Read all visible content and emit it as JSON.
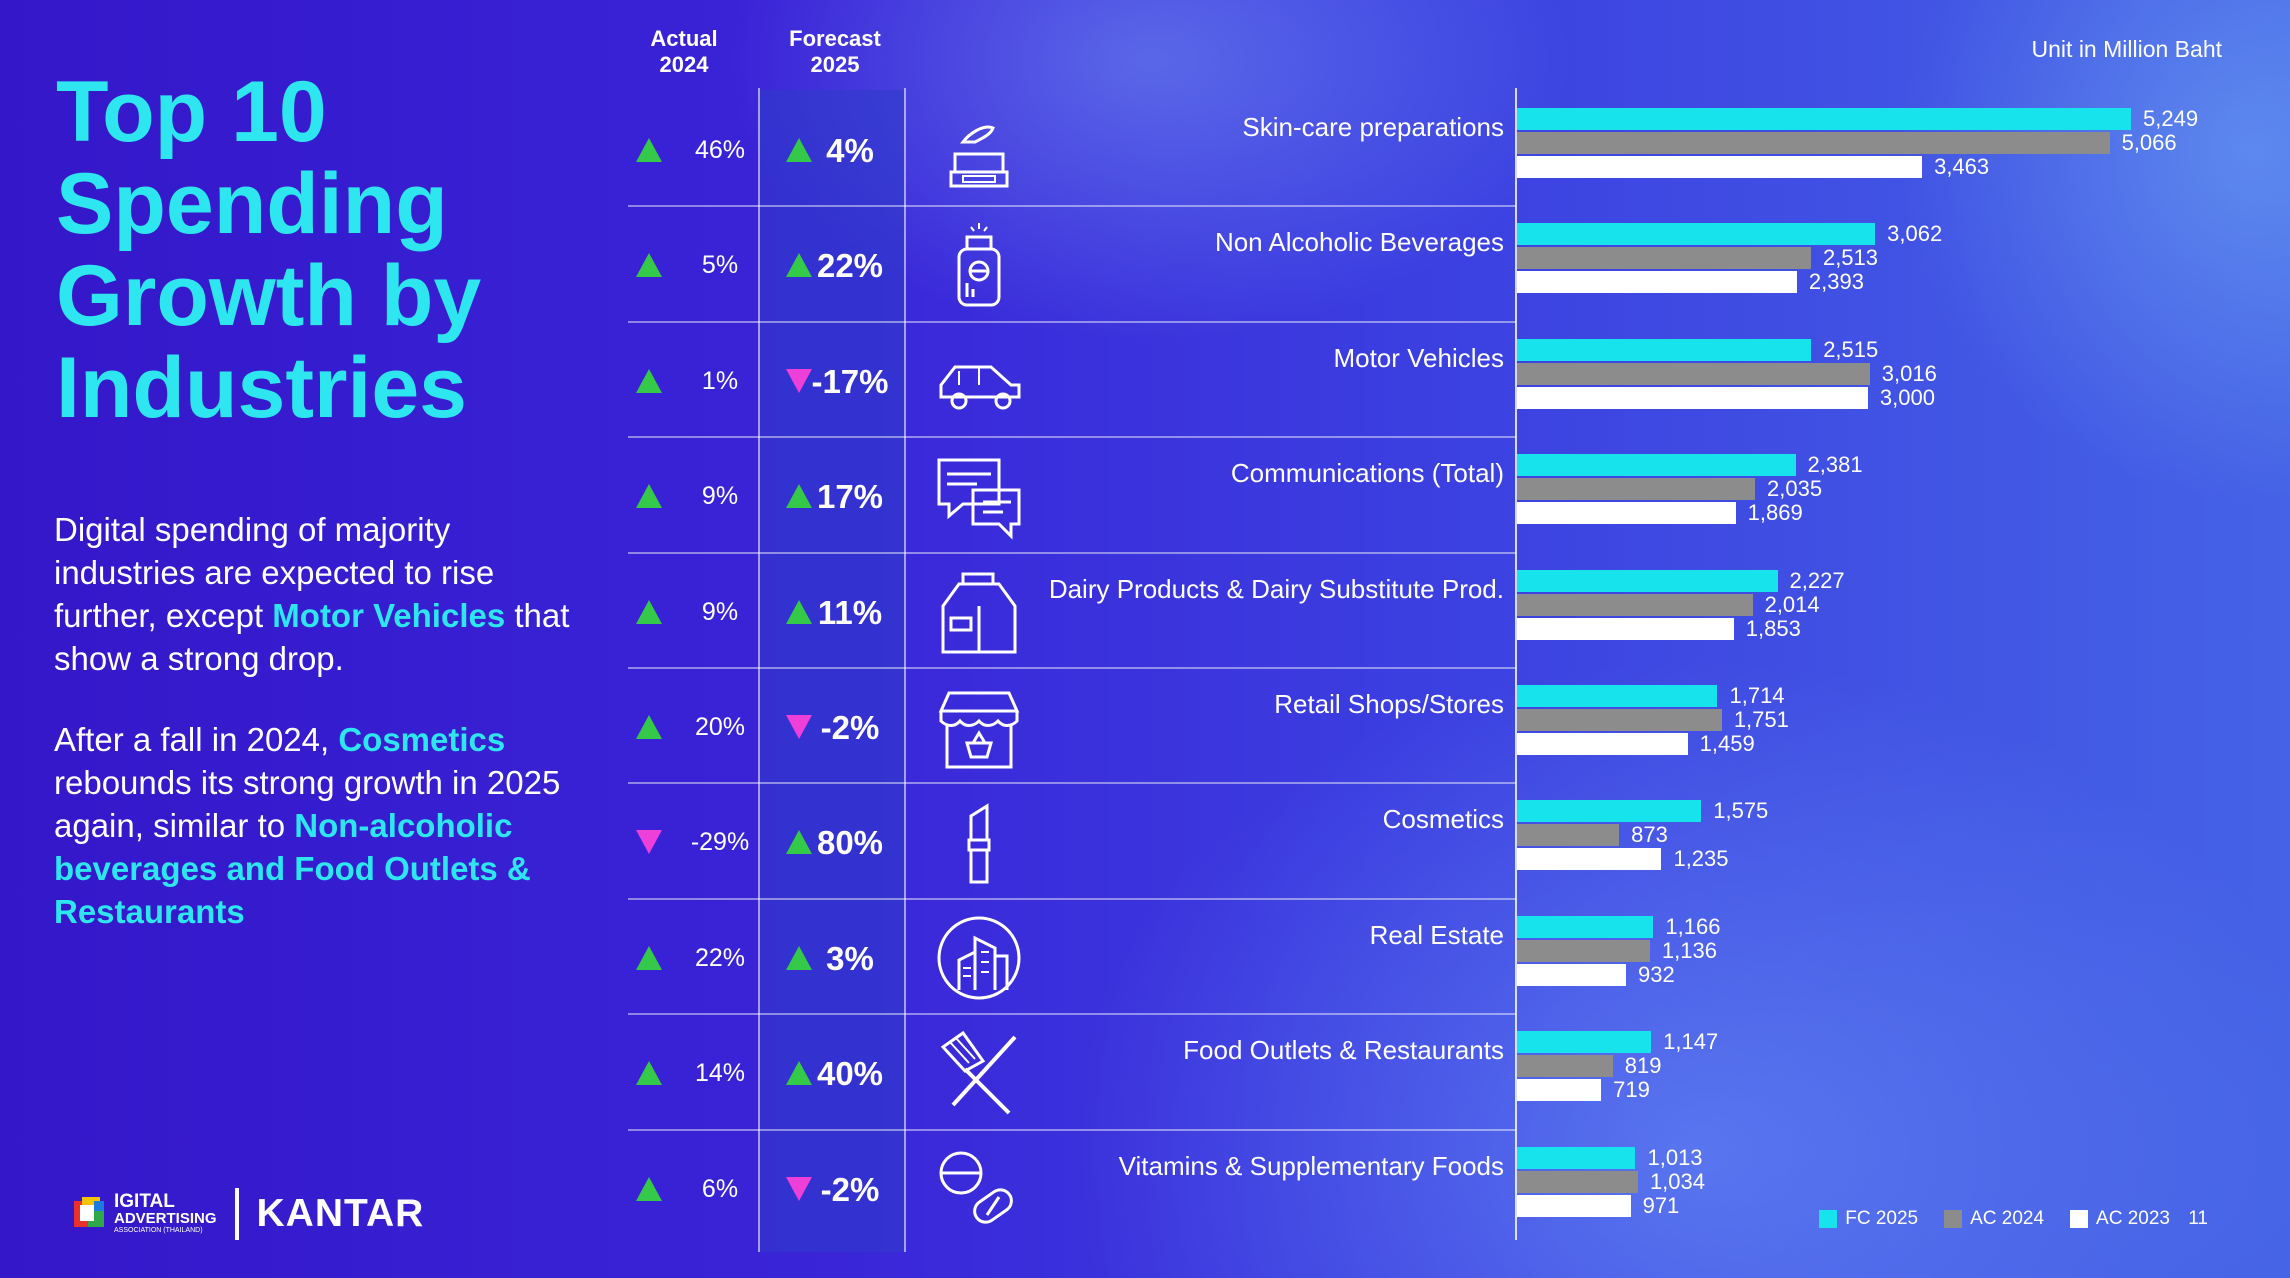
{
  "title": "Top 10 Spending Growth by Industries",
  "paragraph1": {
    "text_before": "Digital spending of majority industries are expected to rise further, except",
    "highlight": "Motor Vehicles",
    "text_after": "that show a strong drop."
  },
  "paragraph2": {
    "text_before": "After a fall in 2024,",
    "highlight1": "Cosmetics",
    "text_middle": "rebounds its strong growth in 2025 again, similar to",
    "highlight2": "Non-alcoholic beverages and Food Outlets & Restaurants"
  },
  "logos": {
    "digital_advertising": "IGITAL",
    "digital_advertising_line2": "ADVERTISING",
    "digital_advertising_sub": "ASSOCIATION (THAILAND)",
    "kantar": "KANTAR"
  },
  "columns": {
    "actual": "Actual 2024",
    "forecast": "Forecast 2025"
  },
  "unit": "Unit in Million Baht",
  "page_number": "11",
  "colors": {
    "fc2025": "#16e3ec",
    "ac2024": "#8c8c8c",
    "ac2023": "#ffffff",
    "up": "#35c94a",
    "down": "#ee3fd9",
    "highlight_text": "#2ee6f0"
  },
  "chart_data": {
    "type": "bar",
    "orientation": "horizontal",
    "categories": [
      "Skin-care preparations",
      "Non Alcoholic Beverages",
      "Motor Vehicles",
      "Communications (Total)",
      "Dairy Products & Dairy Substitute Prod.",
      "Retail Shops/Stores",
      "Cosmetics",
      "Real Estate",
      "Food Outlets & Restaurants",
      "Vitamins & Supplementary Foods"
    ],
    "icons": [
      "cream-jar-icon",
      "bottle-icon",
      "car-icon",
      "chat-bubbles-icon",
      "milk-carton-icon",
      "storefront-icon",
      "lipstick-icon",
      "buildings-icon",
      "utensils-icon",
      "pills-icon"
    ],
    "actual_2024_growth": [
      "46%",
      "5%",
      "1%",
      "9%",
      "9%",
      "20%",
      "-29%",
      "22%",
      "14%",
      "6%"
    ],
    "actual_2024_direction": [
      "up",
      "up",
      "up",
      "up",
      "up",
      "up",
      "down",
      "up",
      "up",
      "up"
    ],
    "forecast_2025_growth": [
      "4%",
      "22%",
      "-17%",
      "17%",
      "11%",
      "-2%",
      "80%",
      "3%",
      "40%",
      "-2%"
    ],
    "forecast_2025_direction": [
      "up",
      "up",
      "down",
      "up",
      "up",
      "down",
      "up",
      "up",
      "up",
      "down"
    ],
    "series": [
      {
        "name": "FC 2025",
        "values": [
          5249,
          3062,
          2515,
          2381,
          2227,
          1714,
          1575,
          1166,
          1147,
          1013
        ]
      },
      {
        "name": "AC 2024",
        "values": [
          5066,
          2513,
          3016,
          2035,
          2014,
          1751,
          873,
          1136,
          819,
          1034
        ]
      },
      {
        "name": "AC 2023",
        "values": [
          3463,
          2393,
          3000,
          1869,
          1853,
          1459,
          1235,
          932,
          719,
          971
        ]
      }
    ],
    "value_labels": [
      [
        "5,249",
        "3,062",
        "2,515",
        "2,381",
        "2,227",
        "1,714",
        "1,575",
        "1,166",
        "1,147",
        "1,013"
      ],
      [
        "5,066",
        "2,513",
        "3,016",
        "2,035",
        "2,014",
        "1,751",
        "873",
        "1,136",
        "819",
        "1,034"
      ],
      [
        "3,463",
        "2,393",
        "3,000",
        "1,869",
        "1,853",
        "1,459",
        "1,235",
        "932",
        "719",
        "971"
      ]
    ],
    "xlim": [
      0,
      5300
    ],
    "grid": false,
    "legend_position": "bottom-right"
  }
}
